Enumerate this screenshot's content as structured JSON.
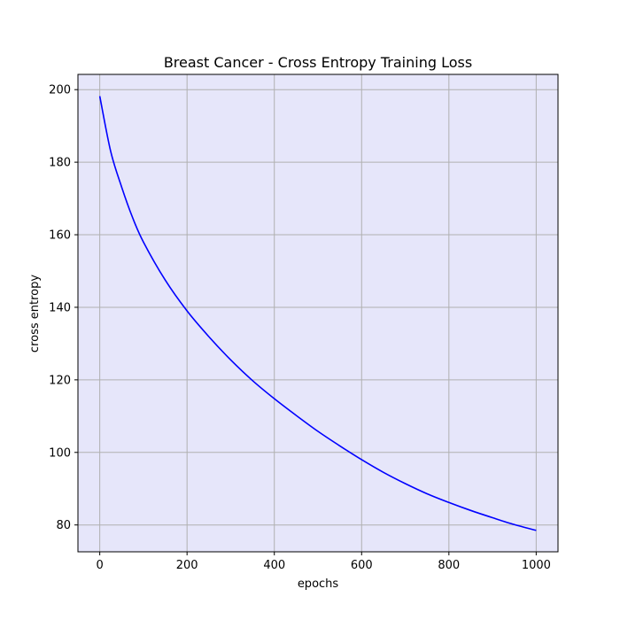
{
  "chart_data": {
    "type": "line",
    "title": "Breast Cancer - Cross Entropy Training Loss",
    "xlabel": "epochs",
    "ylabel": "cross entropy",
    "xlim": [
      -50,
      1050
    ],
    "ylim": [
      72.6,
      204.2
    ],
    "xticks": [
      0,
      200,
      400,
      600,
      800,
      1000
    ],
    "yticks": [
      80,
      100,
      120,
      140,
      160,
      180,
      200
    ],
    "grid": true,
    "background_color": "#e6e6fa",
    "series": [
      {
        "color": "#0000ff",
        "x": [
          0,
          25,
          50,
          75,
          100,
          150,
          200,
          250,
          300,
          350,
          400,
          450,
          500,
          550,
          600,
          650,
          700,
          750,
          800,
          850,
          900,
          950,
          1000
        ],
        "y": [
          198.2,
          183.0,
          173.2,
          164.8,
          158.0,
          147.5,
          139.0,
          131.9,
          125.5,
          119.8,
          114.8,
          110.2,
          105.8,
          101.8,
          98.0,
          94.5,
          91.4,
          88.6,
          86.2,
          84.0,
          82.0,
          80.1,
          78.5
        ]
      }
    ]
  }
}
